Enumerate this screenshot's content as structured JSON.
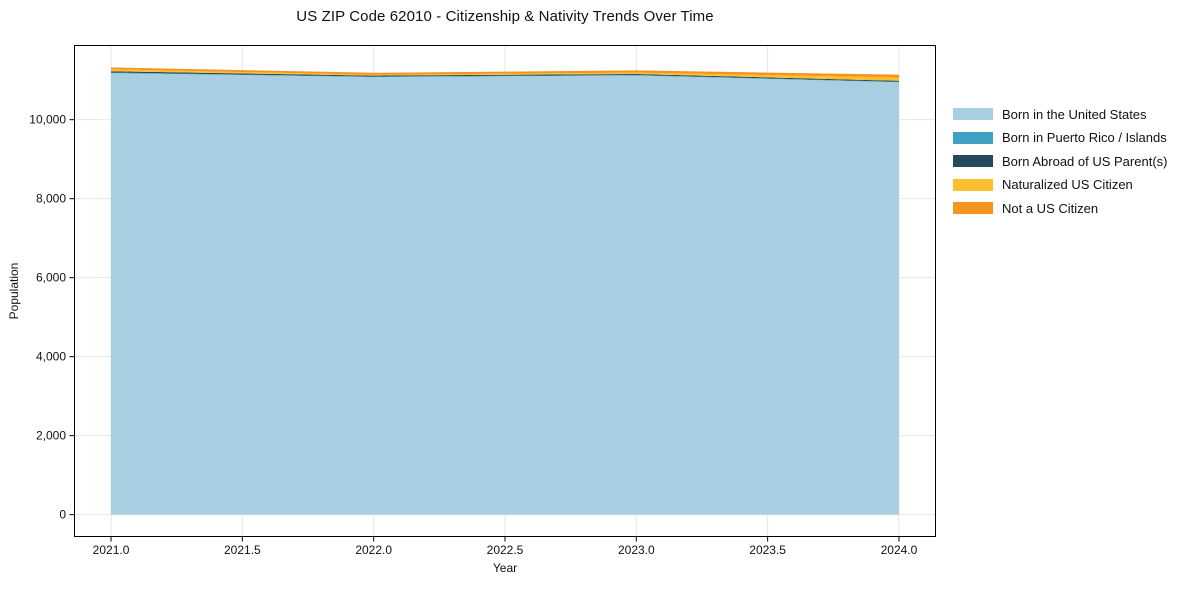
{
  "chart_data": {
    "type": "area",
    "stacked": true,
    "title": "US ZIP Code 62010 - Citizenship & Nativity Trends Over Time",
    "xlabel": "Year",
    "ylabel": "Population",
    "x": [
      2021,
      2022,
      2023,
      2024
    ],
    "series": [
      {
        "name": "Born in the United States",
        "color": "#A8CEE2",
        "values": [
          11180,
          11080,
          11120,
          10950
        ]
      },
      {
        "name": "Born in Puerto Rico / Islands",
        "color": "#3FA0C1",
        "values": [
          15,
          12,
          12,
          10
        ]
      },
      {
        "name": "Born Abroad of US Parent(s)",
        "color": "#264A5D",
        "values": [
          30,
          25,
          25,
          25
        ]
      },
      {
        "name": "Naturalized US Citizen",
        "color": "#FCC02E",
        "values": [
          50,
          20,
          35,
          80
        ]
      },
      {
        "name": "Not a US Citizen",
        "color": "#F7941E",
        "values": [
          50,
          50,
          55,
          75
        ]
      }
    ],
    "xlim": [
      2020.859,
      2024.141
    ],
    "ylim": [
      -566,
      11891
    ],
    "xticks": {
      "values": [
        2021.0,
        2021.5,
        2022.0,
        2022.5,
        2023.0,
        2023.5,
        2024.0
      ],
      "labels": [
        "2021.0",
        "2021.5",
        "2022.0",
        "2022.5",
        "2023.0",
        "2023.5",
        "2024.0"
      ]
    },
    "yticks": {
      "values": [
        0,
        2000,
        4000,
        6000,
        8000,
        10000
      ],
      "labels": [
        "0",
        "2,000",
        "4,000",
        "6,000",
        "8,000",
        "10,000"
      ]
    },
    "grid": true,
    "grid_color": "#E7E7E7",
    "spine_color": "#000000",
    "background_color": "#FFFFFF",
    "legend_position": "right-outside"
  }
}
